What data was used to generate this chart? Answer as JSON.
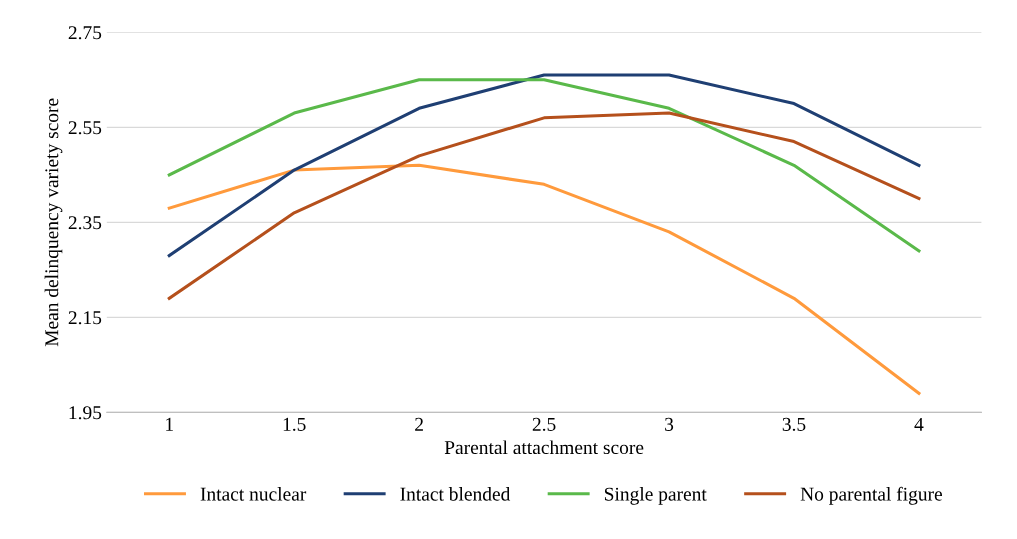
{
  "chart_data": {
    "type": "line",
    "xlabel": "Parental attachment score",
    "ylabel": "Mean delinquency variety score",
    "categories": [
      "1",
      "1.5",
      "2",
      "2.5",
      "3",
      "3.5",
      "4"
    ],
    "series": [
      {
        "name": "Intact nuclear",
        "color": "#ff9a3c",
        "values": [
          2.38,
          2.46,
          2.47,
          2.43,
          2.33,
          2.19,
          1.99
        ]
      },
      {
        "name": "Intact blended",
        "color": "#1f3f73",
        "values": [
          2.28,
          2.46,
          2.59,
          2.66,
          2.66,
          2.6,
          2.47
        ]
      },
      {
        "name": "Single parent",
        "color": "#5ab94a",
        "values": [
          2.45,
          2.58,
          2.65,
          2.65,
          2.59,
          2.47,
          2.29
        ]
      },
      {
        "name": "No parental figure",
        "color": "#b5501c",
        "values": [
          2.19,
          2.37,
          2.49,
          2.57,
          2.58,
          2.52,
          2.4
        ]
      }
    ],
    "ylim": [
      1.95,
      2.75
    ],
    "yticks": [
      {
        "value": 1.95,
        "label": "1.95"
      },
      {
        "value": 2.15,
        "label": "2.15"
      },
      {
        "value": 2.35,
        "label": "2.35"
      },
      {
        "value": 2.55,
        "label": "2.55"
      },
      {
        "value": 2.75,
        "label": "2.75"
      }
    ],
    "grid": "y",
    "legend": "bottom",
    "marker": "none",
    "line_style": "solid"
  }
}
